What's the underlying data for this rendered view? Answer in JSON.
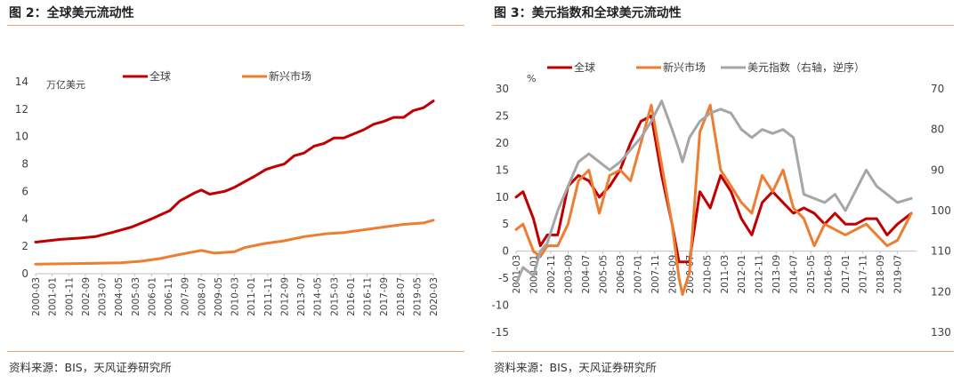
{
  "charts": [
    {
      "title": "图 2：全球美元流动性",
      "source": "资料来源：BIS，天风证券研究所",
      "chart_data": {
        "type": "line",
        "ylabel": "万亿美元",
        "ylim": [
          0,
          14
        ],
        "yticks": [
          0,
          2,
          4,
          6,
          8,
          10,
          12,
          14
        ],
        "x_start": "2000-03",
        "x_end": "2020-03",
        "xtick_labels": [
          "2000-03",
          "2001-01",
          "2001-11",
          "2002-09",
          "2003-07",
          "2004-05",
          "2005-03",
          "2006-01",
          "2006-11",
          "2007-09",
          "2008-07",
          "2009-05",
          "2010-03",
          "2011-01",
          "2011-11",
          "2012-09",
          "2013-07",
          "2014-05",
          "2015-03",
          "2016-01",
          "2016-11",
          "2017-09",
          "2018-07",
          "2019-05",
          "2020-03"
        ],
        "series": [
          {
            "name": "全球",
            "color": "#c00000",
            "x": [
              "2000-03",
              "2001-06",
              "2002-06",
              "2003-03",
              "2004-01",
              "2005-01",
              "2006-01",
              "2006-12",
              "2007-06",
              "2008-03",
              "2008-07",
              "2008-12",
              "2009-09",
              "2010-03",
              "2010-09",
              "2011-03",
              "2011-10",
              "2012-03",
              "2012-09",
              "2013-03",
              "2013-09",
              "2014-03",
              "2014-09",
              "2015-03",
              "2015-09",
              "2016-03",
              "2016-09",
              "2017-03",
              "2017-09",
              "2018-03",
              "2018-09",
              "2019-03",
              "2019-09",
              "2020-03"
            ],
            "values": [
              2.3,
              2.5,
              2.6,
              2.7,
              3.0,
              3.4,
              4.0,
              4.6,
              5.3,
              5.9,
              6.1,
              5.8,
              6.0,
              6.3,
              6.7,
              7.1,
              7.6,
              7.8,
              8.0,
              8.6,
              8.8,
              9.3,
              9.5,
              9.9,
              9.9,
              10.2,
              10.5,
              10.9,
              11.1,
              11.4,
              11.4,
              11.9,
              12.1,
              12.6
            ]
          },
          {
            "name": "新兴市场",
            "color": "#ed7d31",
            "x": [
              "2000-03",
              "2003-01",
              "2004-06",
              "2005-06",
              "2006-06",
              "2007-06",
              "2008-07",
              "2009-03",
              "2010-03",
              "2010-09",
              "2011-09",
              "2012-09",
              "2013-09",
              "2014-09",
              "2015-09",
              "2016-09",
              "2017-09",
              "2018-09",
              "2019-09",
              "2020-03"
            ],
            "values": [
              0.7,
              0.75,
              0.8,
              0.9,
              1.1,
              1.4,
              1.7,
              1.5,
              1.6,
              1.9,
              2.2,
              2.4,
              2.7,
              2.9,
              3.0,
              3.2,
              3.4,
              3.6,
              3.7,
              3.9
            ]
          }
        ]
      }
    },
    {
      "title": "图 3：美元指数和全球美元流动性",
      "source": "资料来源：BIS，天风证券研究所",
      "chart_data": {
        "type": "line",
        "ylabel": "%",
        "ylim": [
          -15,
          30
        ],
        "yticks": [
          -15,
          -10,
          -5,
          0,
          5,
          10,
          15,
          20,
          25,
          30
        ],
        "y2lim": [
          70,
          130
        ],
        "y2ticks": [
          70,
          80,
          90,
          100,
          110,
          120,
          130
        ],
        "y2_inverted": true,
        "x_start": "2001-03",
        "x_end": "2020-06",
        "xtick_labels": [
          "2001-03",
          "2002-01",
          "2002-11",
          "2003-09",
          "2004-07",
          "2005-05",
          "2006-03",
          "2007-01",
          "2007-11",
          "2008-09",
          "2009-07",
          "2010-05",
          "2011-03",
          "2012-01",
          "2012-11",
          "2013-09",
          "2014-07",
          "2015-05",
          "2016-03",
          "2017-01",
          "2017-11",
          "2018-09",
          "2019-07"
        ],
        "series": [
          {
            "name": "全球",
            "color": "#c00000",
            "axis": "left",
            "x": [
              "2001-03",
              "2001-07",
              "2002-01",
              "2002-05",
              "2002-09",
              "2003-03",
              "2003-09",
              "2004-03",
              "2004-09",
              "2005-03",
              "2005-09",
              "2006-03",
              "2006-09",
              "2007-03",
              "2007-09",
              "2008-03",
              "2008-09",
              "2009-01",
              "2009-03",
              "2009-07",
              "2010-01",
              "2010-07",
              "2011-01",
              "2011-07",
              "2012-01",
              "2012-07",
              "2013-01",
              "2013-07",
              "2014-01",
              "2014-07",
              "2015-01",
              "2015-07",
              "2016-01",
              "2016-07",
              "2017-01",
              "2017-07",
              "2018-01",
              "2018-07",
              "2019-01",
              "2019-07",
              "2020-03"
            ],
            "values": [
              10,
              11,
              6,
              1,
              3,
              3,
              12,
              14,
              13,
              10,
              12,
              15,
              20,
              24,
              25,
              14,
              5,
              -2,
              -2,
              -2,
              11,
              8,
              14,
              11,
              6,
              3,
              9,
              11,
              9,
              7,
              8,
              7,
              5,
              7,
              5,
              5,
              6,
              6,
              3,
              5,
              7
            ]
          },
          {
            "name": "新兴市场",
            "color": "#ed7d31",
            "axis": "left",
            "x": [
              "2001-03",
              "2001-07",
              "2002-01",
              "2002-05",
              "2002-09",
              "2003-03",
              "2003-09",
              "2004-03",
              "2004-09",
              "2005-03",
              "2005-09",
              "2006-03",
              "2006-09",
              "2007-03",
              "2007-09",
              "2008-03",
              "2008-09",
              "2009-01",
              "2009-03",
              "2009-07",
              "2010-01",
              "2010-07",
              "2011-01",
              "2011-07",
              "2012-01",
              "2012-07",
              "2013-01",
              "2013-07",
              "2014-01",
              "2014-07",
              "2015-01",
              "2015-07",
              "2016-01",
              "2016-07",
              "2017-01",
              "2017-07",
              "2018-01",
              "2018-07",
              "2019-01",
              "2019-07",
              "2020-03"
            ],
            "values": [
              4,
              5,
              0,
              -1,
              1,
              1,
              5,
              13,
              15,
              7,
              14,
              15,
              13,
              20,
              27,
              16,
              5,
              -5,
              -8,
              -4,
              22,
              27,
              15,
              12,
              9,
              7,
              14,
              11,
              15,
              8,
              6,
              1,
              5,
              4,
              3,
              4,
              5,
              3,
              1,
              2,
              7
            ]
          },
          {
            "name": "美元指数（右轴，逆序）",
            "color": "#a6a6a6",
            "axis": "right",
            "x": [
              "2001-03",
              "2001-07",
              "2002-01",
              "2002-05",
              "2002-09",
              "2003-03",
              "2003-09",
              "2004-03",
              "2004-09",
              "2005-03",
              "2005-09",
              "2006-03",
              "2006-09",
              "2007-03",
              "2007-09",
              "2008-03",
              "2008-09",
              "2009-01",
              "2009-03",
              "2009-07",
              "2010-01",
              "2010-07",
              "2011-01",
              "2011-07",
              "2012-01",
              "2012-07",
              "2013-01",
              "2013-07",
              "2014-01",
              "2014-07",
              "2015-01",
              "2015-07",
              "2016-01",
              "2016-07",
              "2017-01",
              "2017-07",
              "2018-01",
              "2018-07",
              "2019-01",
              "2019-07",
              "2020-03"
            ],
            "values": [
              118,
              114,
              116,
              110,
              108,
              100,
              94,
              88,
              86,
              88,
              90,
              88,
              85,
              82,
              78,
              73,
              80,
              85,
              88,
              82,
              78,
              76,
              75,
              76,
              80,
              82,
              80,
              81,
              80,
              82,
              96,
              97,
              98,
              96,
              100,
              95,
              90,
              94,
              96,
              98,
              97
            ]
          }
        ]
      }
    }
  ]
}
